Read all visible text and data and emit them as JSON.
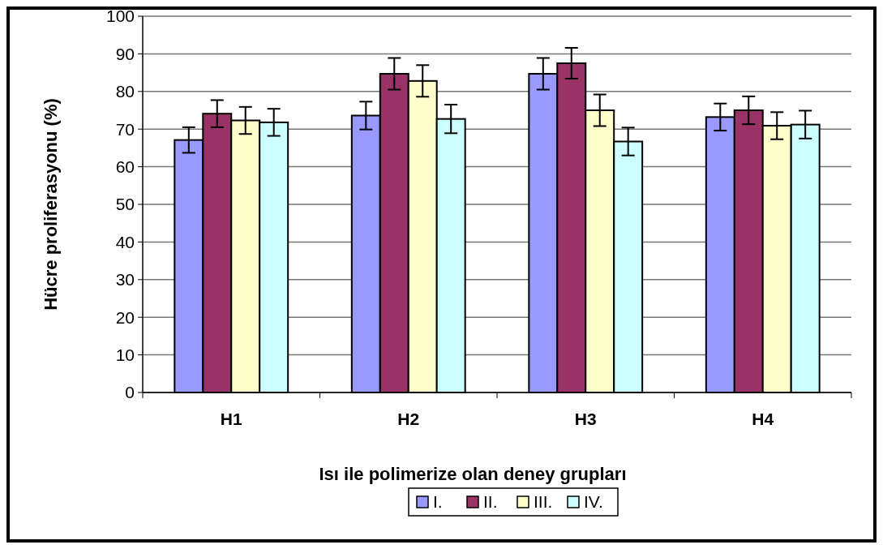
{
  "chart_data": {
    "type": "bar",
    "categories": [
      "H1",
      "H2",
      "H3",
      "H4"
    ],
    "xlabel": "Isı ile polimerize olan deney grupları",
    "ylabel": "Hücre proliferasyonu (%)",
    "series": [
      {
        "name": "I.",
        "color": "#9999ff",
        "values": [
          67.1,
          73.6,
          84.7,
          73.2
        ],
        "errors": [
          3.4,
          3.7,
          4.2,
          3.6
        ]
      },
      {
        "name": "II.",
        "color": "#993366",
        "values": [
          74.1,
          84.7,
          87.5,
          75.0
        ],
        "errors": [
          3.6,
          4.2,
          4.1,
          3.7
        ]
      },
      {
        "name": "III.",
        "color": "#ffffcc",
        "values": [
          72.3,
          82.8,
          75.0,
          70.9
        ],
        "errors": [
          3.6,
          4.2,
          4.2,
          3.6
        ]
      },
      {
        "name": "IV.",
        "color": "#ccffff",
        "values": [
          71.8,
          72.7,
          66.7,
          71.2
        ],
        "errors": [
          3.6,
          3.8,
          3.7,
          3.7
        ]
      }
    ],
    "ylim": [
      0,
      100
    ],
    "yticks": [
      0,
      10,
      20,
      30,
      40,
      50,
      60,
      70,
      80,
      90,
      100
    ],
    "grid": "y",
    "legend": "bottom"
  }
}
